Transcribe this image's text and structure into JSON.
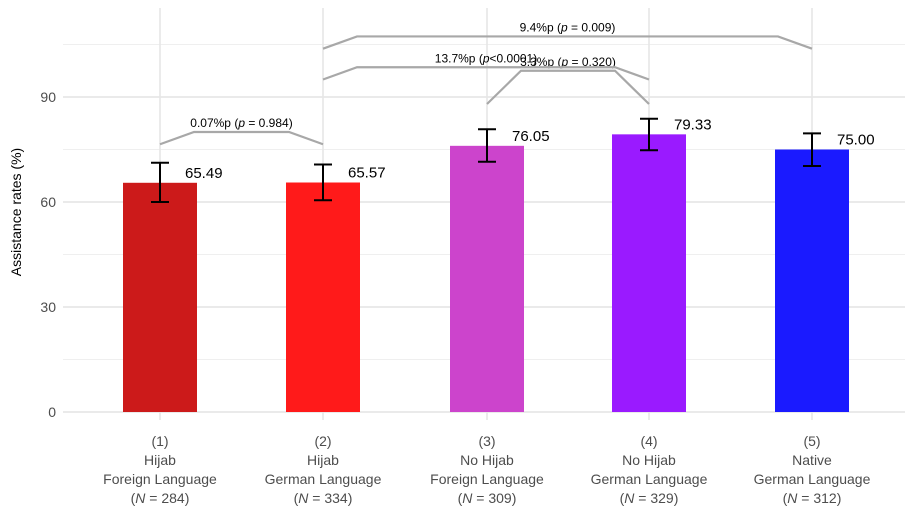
{
  "chart_data": {
    "type": "bar",
    "title": "",
    "xlabel": "",
    "ylabel": "Assistance rates (%)",
    "ylim": [
      0,
      112
    ],
    "yticks": [
      "0",
      "30",
      "60",
      "90"
    ],
    "grid": true,
    "categories": [
      {
        "num": "(1)",
        "line1": "Hijab",
        "line2": "Foreign Language",
        "n": "284",
        "color": "#cc1a1a"
      },
      {
        "num": "(2)",
        "line1": "Hijab",
        "line2": "German Language",
        "n": "334",
        "color": "#ff1a1a"
      },
      {
        "num": "(3)",
        "line1": "No Hijab",
        "line2": "Foreign Language",
        "n": "309",
        "color": "#cc44cc"
      },
      {
        "num": "(4)",
        "line1": "No Hijab",
        "line2": "German Language",
        "n": "329",
        "color": "#9a1aff"
      },
      {
        "num": "(5)",
        "line1": "Native",
        "line2": "German Language",
        "n": "312",
        "color": "#1a1aff"
      }
    ],
    "values": [
      65.49,
      65.57,
      76.05,
      79.33,
      75.0
    ],
    "value_labels": [
      "65.49",
      "65.57",
      "76.05",
      "79.33",
      "75.00"
    ],
    "error_low": [
      60.0,
      60.5,
      71.5,
      74.8,
      70.3
    ],
    "error_high": [
      71.2,
      70.7,
      80.8,
      83.8,
      79.6
    ],
    "comparisons": [
      {
        "from": 0,
        "to": 1,
        "y": 80,
        "drop": 3.5,
        "diff": "0.07%p",
        "p": "0.984",
        "op": "="
      },
      {
        "from": 2,
        "to": 3,
        "y": 97.5,
        "drop": 9.5,
        "diff": "3.3%p",
        "p": "0.320",
        "op": "="
      },
      {
        "from": 1,
        "to": 3,
        "y": 98.5,
        "drop": 3.5,
        "diff": "13.7%p",
        "p": "0.0001",
        "op": "<"
      },
      {
        "from": 1,
        "to": 4,
        "y": 107.3,
        "drop": 3.5,
        "diff": "9.4%p",
        "p": "0.009",
        "op": "="
      }
    ]
  }
}
